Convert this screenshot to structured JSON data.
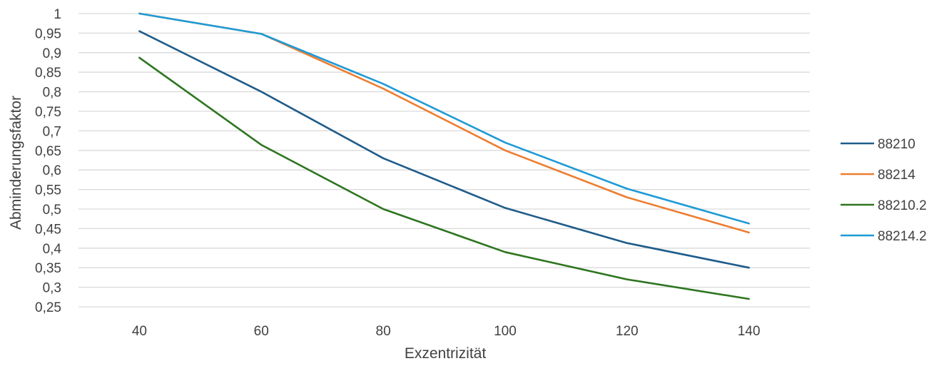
{
  "chart_data": {
    "type": "line",
    "title": "",
    "xlabel": "Exzentrizität",
    "ylabel": "Abminderungsfaktor",
    "x": [
      40,
      60,
      80,
      100,
      120,
      140
    ],
    "x_tick_labels": [
      "40",
      "60",
      "80",
      "100",
      "120",
      "140"
    ],
    "ylim": [
      0.25,
      1
    ],
    "y_tick_labels": [
      "1",
      "0,95",
      "0,9",
      "0,85",
      "0,8",
      "0,75",
      "0,7",
      "0,65",
      "0,6",
      "0,55",
      "0,5",
      "0,45",
      "0,4",
      "0,35",
      "0,3",
      "0,25"
    ],
    "grid": true,
    "legend_position": "right",
    "series": [
      {
        "name": "88210",
        "color": "#1f5c8a",
        "values": [
          0.955,
          0.8,
          0.63,
          0.503,
          0.413,
          0.35
        ]
      },
      {
        "name": "88214",
        "color": "#ed7d31",
        "values": [
          1.0,
          0.948,
          0.808,
          0.65,
          0.53,
          0.44
        ]
      },
      {
        "name": "88210.2",
        "color": "#2e7520",
        "values": [
          0.887,
          0.664,
          0.5,
          0.39,
          0.32,
          0.27
        ]
      },
      {
        "name": "88214.2",
        "color": "#1f9ad6",
        "values": [
          1.0,
          0.948,
          0.82,
          0.67,
          0.552,
          0.463
        ]
      }
    ]
  }
}
